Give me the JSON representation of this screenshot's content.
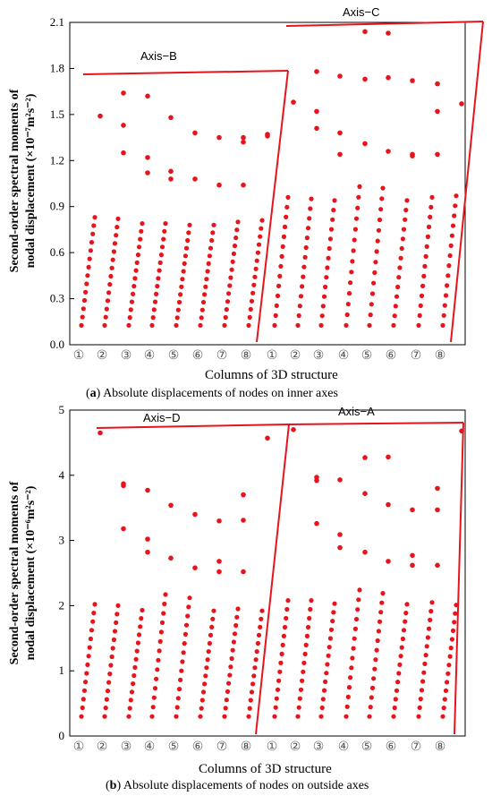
{
  "chart_data": [
    {
      "type": "scatter",
      "ylabel_line1": "Second-order spectral moments of",
      "ylabel_line2": "nodal displacement (×10⁻⁷m²s⁻²)",
      "xlabel": "Columns of  3D structure",
      "caption_letter": "a",
      "caption_text": " Absolute displacements of nodes on inner axes",
      "ylim": [
        0,
        2.1
      ],
      "yticks": [
        "0.0",
        "0.3",
        "0.6",
        "0.9",
        "1.2",
        "1.5",
        "1.8",
        "2.1"
      ],
      "column_labels": [
        "①",
        "②",
        "③",
        "④",
        "⑤",
        "⑥",
        "⑦",
        "⑧",
        "①",
        "②",
        "③",
        "④",
        "⑤",
        "⑥",
        "⑦",
        "⑧"
      ],
      "color": "#e8141b",
      "groups": [
        {
          "name": "Axis−B",
          "upper": [
            [
              0,
              1.49
            ],
            [
              1,
              1.64
            ],
            [
              1,
              1.43
            ],
            [
              1,
              1.25
            ],
            [
              2,
              1.62
            ],
            [
              2,
              1.22
            ],
            [
              2,
              1.12
            ],
            [
              3,
              1.48
            ],
            [
              3,
              1.13
            ],
            [
              3,
              1.08
            ],
            [
              4,
              1.38
            ],
            [
              4,
              1.08
            ],
            [
              5,
              1.35
            ],
            [
              5,
              1.04
            ],
            [
              6,
              1.35
            ],
            [
              6,
              1.32
            ],
            [
              6,
              1.04
            ],
            [
              7,
              1.37
            ],
            [
              7,
              1.36
            ]
          ],
          "lower_top": [
            0.83,
            0.82,
            0.79,
            0.79,
            0.78,
            0.78,
            0.8,
            0.81
          ]
        },
        {
          "name": "Axis−C",
          "upper": [
            [
              0,
              1.58
            ],
            [
              1,
              1.78
            ],
            [
              1,
              1.52
            ],
            [
              1,
              1.41
            ],
            [
              2,
              1.75
            ],
            [
              2,
              1.38
            ],
            [
              2,
              1.24
            ],
            [
              3,
              2.04
            ],
            [
              3,
              1.73
            ],
            [
              3,
              1.31
            ],
            [
              4,
              2.03
            ],
            [
              4,
              1.74
            ],
            [
              4,
              1.26
            ],
            [
              5,
              1.72
            ],
            [
              5,
              1.24
            ],
            [
              5,
              1.23
            ],
            [
              6,
              1.7
            ],
            [
              6,
              1.52
            ],
            [
              6,
              1.24
            ],
            [
              7,
              1.57
            ]
          ],
          "lower_top": [
            0.96,
            0.95,
            0.94,
            1.03,
            1.02,
            0.94,
            0.96,
            0.97
          ]
        }
      ]
    },
    {
      "type": "scatter",
      "ylabel_line1": "Second-order spectral moments of",
      "ylabel_line2": "nodal displacement (×10⁻⁶m²s⁻²)",
      "xlabel": "Columns of  3D structure",
      "caption_letter": "b",
      "caption_text": " Absolute displacements of nodes on outside axes",
      "ylim": [
        0,
        5
      ],
      "yticks": [
        "0",
        "1",
        "2",
        "3",
        "4",
        "5"
      ],
      "column_labels": [
        "①",
        "②",
        "③",
        "④",
        "⑤",
        "⑥",
        "⑦",
        "⑧",
        "①",
        "②",
        "③",
        "④",
        "⑤",
        "⑥",
        "⑦",
        "⑧"
      ],
      "color": "#e8141b",
      "groups": [
        {
          "name": "Axis−D",
          "upper": [
            [
              0,
              4.65
            ],
            [
              1,
              3.87
            ],
            [
              1,
              3.84
            ],
            [
              1,
              3.18
            ],
            [
              2,
              3.77
            ],
            [
              2,
              3.02
            ],
            [
              2,
              2.82
            ],
            [
              3,
              3.54
            ],
            [
              3,
              2.73
            ],
            [
              4,
              3.4
            ],
            [
              4,
              2.58
            ],
            [
              5,
              3.3
            ],
            [
              5,
              2.68
            ],
            [
              5,
              2.52
            ],
            [
              6,
              3.7
            ],
            [
              6,
              3.31
            ],
            [
              6,
              2.52
            ],
            [
              7,
              4.57
            ]
          ],
          "lower_top": [
            2.02,
            2.0,
            1.93,
            2.17,
            2.12,
            1.92,
            1.95,
            1.92
          ]
        },
        {
          "name": "Axis−A",
          "upper": [
            [
              0,
              4.7
            ],
            [
              1,
              3.97
            ],
            [
              1,
              3.92
            ],
            [
              1,
              3.26
            ],
            [
              2,
              3.93
            ],
            [
              2,
              3.09
            ],
            [
              2,
              2.89
            ],
            [
              3,
              4.27
            ],
            [
              3,
              3.72
            ],
            [
              3,
              2.82
            ],
            [
              4,
              4.28
            ],
            [
              4,
              3.55
            ],
            [
              4,
              2.68
            ],
            [
              5,
              3.47
            ],
            [
              5,
              2.77
            ],
            [
              5,
              2.62
            ],
            [
              6,
              3.8
            ],
            [
              6,
              3.47
            ],
            [
              6,
              2.62
            ],
            [
              7,
              4.68
            ]
          ],
          "lower_top": [
            2.08,
            2.08,
            2.03,
            2.24,
            2.19,
            2.02,
            2.05,
            2.01
          ]
        }
      ]
    }
  ]
}
